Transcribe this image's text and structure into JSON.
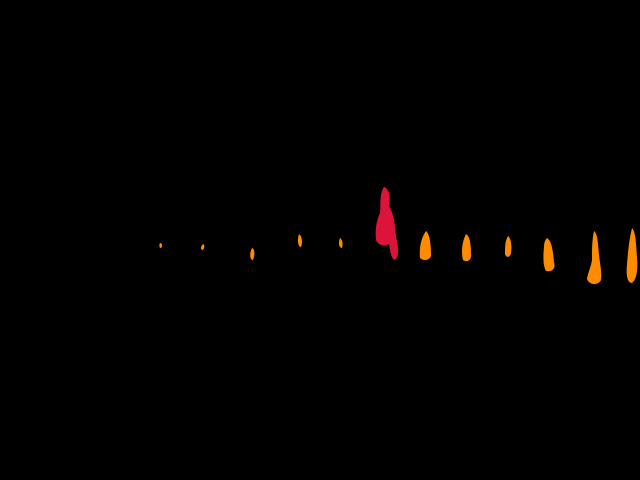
{
  "background": "#000000",
  "colors": {
    "marker": "#ff8c00",
    "highlight": "#dc143c"
  },
  "segments": [
    {
      "id": 1,
      "label": "",
      "state": "normal"
    },
    {
      "id": 2,
      "label": "",
      "state": "normal"
    },
    {
      "id": 3,
      "label": "",
      "state": "normal"
    },
    {
      "id": 4,
      "label": "",
      "state": "normal"
    },
    {
      "id": 5,
      "label": "",
      "state": "normal"
    },
    {
      "id": 6,
      "label": "",
      "state": "highlight"
    },
    {
      "id": 7,
      "label": "",
      "state": "normal"
    },
    {
      "id": 8,
      "label": "",
      "state": "normal"
    },
    {
      "id": 9,
      "label": "",
      "state": "normal"
    },
    {
      "id": 10,
      "label": "",
      "state": "normal"
    },
    {
      "id": 11,
      "label": "",
      "state": "normal"
    },
    {
      "id": 12,
      "label": "",
      "state": "normal"
    }
  ]
}
